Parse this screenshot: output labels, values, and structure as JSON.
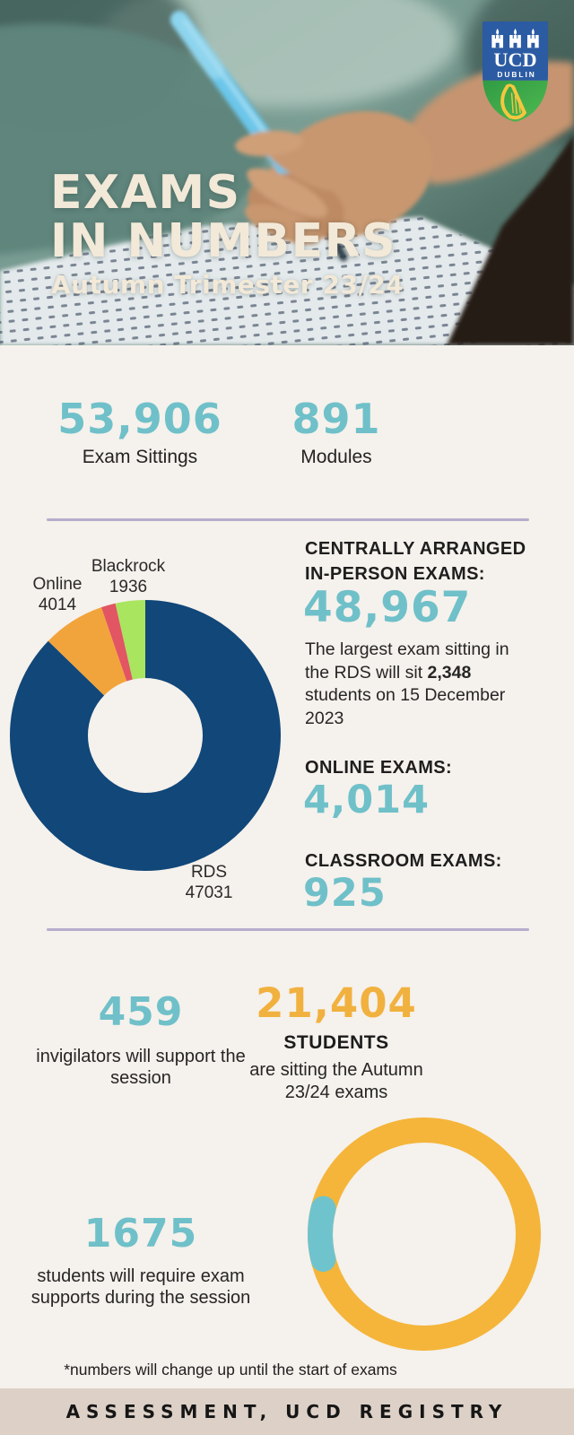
{
  "header": {
    "title_line1": "EXAMS",
    "title_line2": "IN NUMBERS",
    "subtitle": "Autumn Trimester 23/24",
    "logo": {
      "acronym": "UCD",
      "city": "DUBLIN"
    }
  },
  "top_stats": [
    {
      "value": "53,906",
      "label": "Exam Sittings"
    },
    {
      "value": "891",
      "label": "Modules"
    }
  ],
  "in_person": {
    "heading": "CENTRALLY ARRANGED IN-PERSON EXAMS:",
    "value": "48,967",
    "note_pre": "The largest exam sitting in the RDS will sit ",
    "note_bold": "2,348",
    "note_post": " students on 15 December 2023"
  },
  "online": {
    "heading": "ONLINE EXAMS:",
    "value": "4,014"
  },
  "classroom": {
    "heading": "CLASSROOM EXAMS:",
    "value": "925"
  },
  "invigilators": {
    "value": "459",
    "text": "invigilators will support the session"
  },
  "students": {
    "value": "21,404",
    "label": "STUDENTS",
    "text": "are sitting the Autumn 23/24 exams"
  },
  "supports": {
    "value": "1675",
    "text": "students will require exam supports during the session"
  },
  "footnote": "*numbers will change up until the start of exams",
  "footer": "ASSESSMENT, UCD REGISTRY",
  "colors": {
    "background": "#f5f1ec",
    "teal": "#6fc0c9",
    "amber": "#f1b13e",
    "ink": "#1e1e1e",
    "divider_lavender": "#b5adcb",
    "footer_band": "#ddd1c7",
    "hero_title_cream": "#f3e9d8",
    "donut_navy": "#114779",
    "donut_orange": "#f2a43c",
    "donut_red": "#e25563",
    "donut_green": "#a9e55f"
  },
  "chart_data": [
    {
      "type": "pie",
      "subtype": "donut",
      "total": 53906,
      "direction": "clockwise",
      "start_angle_deg": 0,
      "segments": [
        {
          "label": "RDS",
          "value": 47031,
          "color": "#114779",
          "label_shown": true
        },
        {
          "label": "Online",
          "value": 4014,
          "color": "#f2a43c",
          "label_shown": true
        },
        {
          "label": "Classroom",
          "value": 925,
          "color": "#e25563",
          "label_shown": false
        },
        {
          "label": "Blackrock",
          "value": 1936,
          "color": "#a9e55f",
          "label_shown": true
        }
      ]
    },
    {
      "type": "pie",
      "subtype": "ring",
      "total": 21404,
      "highlight_center_angle_deg": 270,
      "segments": [
        {
          "label": "students requiring exam supports",
          "value": 1675,
          "color": "#6fc3cd"
        },
        {
          "label": "remaining students",
          "value": 19729,
          "color": "#f4b53a"
        }
      ]
    }
  ]
}
